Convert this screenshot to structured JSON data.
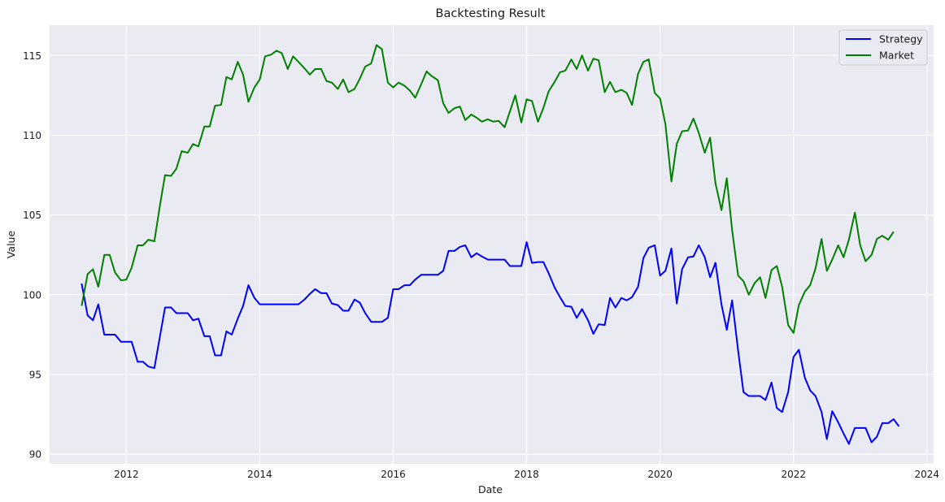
{
  "chart_data": {
    "type": "line",
    "title": "Backtesting Result",
    "xlabel": "Date",
    "ylabel": "Value",
    "xlim": [
      2010.85,
      2024.1
    ],
    "ylim": [
      89.4,
      116.9
    ],
    "xticks": [
      2012,
      2014,
      2016,
      2018,
      2020,
      2022,
      2024
    ],
    "xtick_labels": [
      "2012",
      "2014",
      "2016",
      "2018",
      "2020",
      "2022",
      "2024"
    ],
    "yticks": [
      90,
      95,
      100,
      105,
      110,
      115
    ],
    "ytick_labels": [
      "90",
      "95",
      "100",
      "105",
      "110",
      "115"
    ],
    "grid": true,
    "legend_position": "top-right",
    "colors": {
      "background": "#eaeaf2",
      "grid": "#ffffff",
      "strategy": "#0000ff",
      "market": "#008000"
    },
    "series": [
      {
        "name": "Strategy",
        "points": [
          [
            2011.33,
            100.7
          ],
          [
            2011.42,
            98.7
          ],
          [
            2011.5,
            98.4
          ],
          [
            2011.58,
            99.4
          ],
          [
            2011.67,
            97.5
          ],
          [
            2011.75,
            97.5
          ],
          [
            2011.83,
            97.5
          ],
          [
            2011.92,
            97.05
          ],
          [
            2012.0,
            97.05
          ],
          [
            2012.08,
            97.05
          ],
          [
            2012.17,
            95.8
          ],
          [
            2012.25,
            95.8
          ],
          [
            2012.33,
            95.5
          ],
          [
            2012.42,
            95.4
          ],
          [
            2012.5,
            97.3
          ],
          [
            2012.58,
            99.2
          ],
          [
            2012.67,
            99.2
          ],
          [
            2012.75,
            98.85
          ],
          [
            2012.83,
            98.85
          ],
          [
            2012.92,
            98.85
          ],
          [
            2013.0,
            98.4
          ],
          [
            2013.08,
            98.5
          ],
          [
            2013.17,
            97.4
          ],
          [
            2013.25,
            97.4
          ],
          [
            2013.33,
            96.2
          ],
          [
            2013.42,
            96.2
          ],
          [
            2013.5,
            97.7
          ],
          [
            2013.58,
            97.5
          ],
          [
            2013.67,
            98.5
          ],
          [
            2013.75,
            99.3
          ],
          [
            2013.83,
            100.6
          ],
          [
            2013.92,
            99.8
          ],
          [
            2014.0,
            99.4
          ],
          [
            2014.08,
            99.4
          ],
          [
            2014.17,
            99.4
          ],
          [
            2014.25,
            99.4
          ],
          [
            2014.33,
            99.4
          ],
          [
            2014.42,
            99.4
          ],
          [
            2014.5,
            99.4
          ],
          [
            2014.58,
            99.4
          ],
          [
            2014.67,
            99.7
          ],
          [
            2014.75,
            100.05
          ],
          [
            2014.83,
            100.35
          ],
          [
            2014.92,
            100.1
          ],
          [
            2015.0,
            100.1
          ],
          [
            2015.08,
            99.45
          ],
          [
            2015.17,
            99.35
          ],
          [
            2015.25,
            99.0
          ],
          [
            2015.33,
            99.0
          ],
          [
            2015.42,
            99.7
          ],
          [
            2015.5,
            99.5
          ],
          [
            2015.58,
            98.85
          ],
          [
            2015.67,
            98.3
          ],
          [
            2015.75,
            98.3
          ],
          [
            2015.83,
            98.3
          ],
          [
            2015.92,
            98.55
          ],
          [
            2016.0,
            100.35
          ],
          [
            2016.08,
            100.35
          ],
          [
            2016.17,
            100.6
          ],
          [
            2016.25,
            100.6
          ],
          [
            2016.33,
            100.95
          ],
          [
            2016.42,
            101.25
          ],
          [
            2016.5,
            101.25
          ],
          [
            2016.58,
            101.25
          ],
          [
            2016.67,
            101.25
          ],
          [
            2016.75,
            101.5
          ],
          [
            2016.83,
            102.75
          ],
          [
            2016.92,
            102.75
          ],
          [
            2017.0,
            103.0
          ],
          [
            2017.08,
            103.1
          ],
          [
            2017.17,
            102.35
          ],
          [
            2017.25,
            102.6
          ],
          [
            2017.33,
            102.4
          ],
          [
            2017.42,
            102.2
          ],
          [
            2017.5,
            102.2
          ],
          [
            2017.58,
            102.2
          ],
          [
            2017.67,
            102.2
          ],
          [
            2017.75,
            101.8
          ],
          [
            2017.83,
            101.8
          ],
          [
            2017.92,
            101.8
          ],
          [
            2018.0,
            103.3
          ],
          [
            2018.08,
            102.0
          ],
          [
            2018.17,
            102.05
          ],
          [
            2018.25,
            102.05
          ],
          [
            2018.33,
            101.35
          ],
          [
            2018.42,
            100.45
          ],
          [
            2018.5,
            99.85
          ],
          [
            2018.58,
            99.3
          ],
          [
            2018.67,
            99.25
          ],
          [
            2018.75,
            98.55
          ],
          [
            2018.83,
            99.1
          ],
          [
            2018.92,
            98.4
          ],
          [
            2019.0,
            97.55
          ],
          [
            2019.08,
            98.15
          ],
          [
            2019.17,
            98.1
          ],
          [
            2019.25,
            99.8
          ],
          [
            2019.33,
            99.2
          ],
          [
            2019.42,
            99.8
          ],
          [
            2019.5,
            99.65
          ],
          [
            2019.58,
            99.85
          ],
          [
            2019.67,
            100.5
          ],
          [
            2019.75,
            102.3
          ],
          [
            2019.83,
            102.95
          ],
          [
            2019.92,
            103.1
          ],
          [
            2020.0,
            101.2
          ],
          [
            2020.08,
            101.5
          ],
          [
            2020.17,
            102.9
          ],
          [
            2020.25,
            99.45
          ],
          [
            2020.33,
            101.6
          ],
          [
            2020.42,
            102.35
          ],
          [
            2020.5,
            102.4
          ],
          [
            2020.58,
            103.1
          ],
          [
            2020.67,
            102.35
          ],
          [
            2020.75,
            101.1
          ],
          [
            2020.83,
            102.0
          ],
          [
            2020.92,
            99.4
          ],
          [
            2021.0,
            97.8
          ],
          [
            2021.08,
            99.65
          ],
          [
            2021.17,
            96.5
          ],
          [
            2021.25,
            93.9
          ],
          [
            2021.33,
            93.65
          ],
          [
            2021.42,
            93.65
          ],
          [
            2021.5,
            93.65
          ],
          [
            2021.58,
            93.4
          ],
          [
            2021.67,
            94.5
          ],
          [
            2021.75,
            92.9
          ],
          [
            2021.83,
            92.65
          ],
          [
            2021.92,
            93.9
          ],
          [
            2022.0,
            96.1
          ],
          [
            2022.08,
            96.55
          ],
          [
            2022.17,
            94.8
          ],
          [
            2022.25,
            94.0
          ],
          [
            2022.33,
            93.65
          ],
          [
            2022.42,
            92.65
          ],
          [
            2022.5,
            90.95
          ],
          [
            2022.58,
            92.7
          ],
          [
            2022.67,
            92.0
          ],
          [
            2022.75,
            91.3
          ],
          [
            2022.83,
            90.65
          ],
          [
            2022.92,
            91.65
          ],
          [
            2023.0,
            91.65
          ],
          [
            2023.08,
            91.65
          ],
          [
            2023.17,
            90.75
          ],
          [
            2023.25,
            91.1
          ],
          [
            2023.33,
            91.95
          ],
          [
            2023.42,
            91.95
          ],
          [
            2023.5,
            92.2
          ],
          [
            2023.58,
            91.75
          ]
        ]
      },
      {
        "name": "Market",
        "points": [
          [
            2011.33,
            99.3
          ],
          [
            2011.42,
            101.3
          ],
          [
            2011.5,
            101.6
          ],
          [
            2011.58,
            100.5
          ],
          [
            2011.67,
            102.5
          ],
          [
            2011.75,
            102.5
          ],
          [
            2011.83,
            101.4
          ],
          [
            2011.92,
            100.9
          ],
          [
            2012.0,
            100.95
          ],
          [
            2012.08,
            101.7
          ],
          [
            2012.17,
            103.1
          ],
          [
            2012.25,
            103.1
          ],
          [
            2012.33,
            103.45
          ],
          [
            2012.42,
            103.35
          ],
          [
            2012.5,
            105.5
          ],
          [
            2012.58,
            107.5
          ],
          [
            2012.67,
            107.45
          ],
          [
            2012.75,
            107.9
          ],
          [
            2012.83,
            109.0
          ],
          [
            2012.92,
            108.9
          ],
          [
            2013.0,
            109.45
          ],
          [
            2013.08,
            109.3
          ],
          [
            2013.17,
            110.55
          ],
          [
            2013.25,
            110.55
          ],
          [
            2013.33,
            111.85
          ],
          [
            2013.42,
            111.9
          ],
          [
            2013.5,
            113.65
          ],
          [
            2013.58,
            113.5
          ],
          [
            2013.67,
            114.6
          ],
          [
            2013.75,
            113.8
          ],
          [
            2013.83,
            112.1
          ],
          [
            2013.92,
            113.0
          ],
          [
            2014.0,
            113.5
          ],
          [
            2014.08,
            114.95
          ],
          [
            2014.17,
            115.05
          ],
          [
            2014.25,
            115.3
          ],
          [
            2014.33,
            115.15
          ],
          [
            2014.42,
            114.15
          ],
          [
            2014.5,
            114.95
          ],
          [
            2014.58,
            114.6
          ],
          [
            2014.67,
            114.2
          ],
          [
            2014.75,
            113.8
          ],
          [
            2014.83,
            114.15
          ],
          [
            2014.92,
            114.15
          ],
          [
            2015.0,
            113.4
          ],
          [
            2015.08,
            113.3
          ],
          [
            2015.17,
            112.9
          ],
          [
            2015.25,
            113.5
          ],
          [
            2015.33,
            112.7
          ],
          [
            2015.42,
            112.9
          ],
          [
            2015.5,
            113.55
          ],
          [
            2015.58,
            114.3
          ],
          [
            2015.67,
            114.5
          ],
          [
            2015.75,
            115.65
          ],
          [
            2015.83,
            115.4
          ],
          [
            2015.92,
            113.3
          ],
          [
            2016.0,
            113.0
          ],
          [
            2016.08,
            113.3
          ],
          [
            2016.17,
            113.1
          ],
          [
            2016.25,
            112.8
          ],
          [
            2016.33,
            112.35
          ],
          [
            2016.42,
            113.2
          ],
          [
            2016.5,
            114.0
          ],
          [
            2016.58,
            113.7
          ],
          [
            2016.67,
            113.45
          ],
          [
            2016.75,
            112.0
          ],
          [
            2016.83,
            111.4
          ],
          [
            2016.92,
            111.7
          ],
          [
            2017.0,
            111.8
          ],
          [
            2017.08,
            110.95
          ],
          [
            2017.17,
            111.3
          ],
          [
            2017.25,
            111.1
          ],
          [
            2017.33,
            110.85
          ],
          [
            2017.42,
            111.0
          ],
          [
            2017.5,
            110.85
          ],
          [
            2017.58,
            110.9
          ],
          [
            2017.67,
            110.5
          ],
          [
            2017.75,
            111.5
          ],
          [
            2017.83,
            112.5
          ],
          [
            2017.92,
            110.8
          ],
          [
            2018.0,
            112.25
          ],
          [
            2018.08,
            112.15
          ],
          [
            2018.17,
            110.85
          ],
          [
            2018.25,
            111.7
          ],
          [
            2018.33,
            112.75
          ],
          [
            2018.42,
            113.35
          ],
          [
            2018.5,
            113.95
          ],
          [
            2018.58,
            114.05
          ],
          [
            2018.67,
            114.75
          ],
          [
            2018.75,
            114.15
          ],
          [
            2018.83,
            115.0
          ],
          [
            2018.92,
            114.05
          ],
          [
            2019.0,
            114.8
          ],
          [
            2019.08,
            114.7
          ],
          [
            2019.17,
            112.7
          ],
          [
            2019.25,
            113.35
          ],
          [
            2019.33,
            112.7
          ],
          [
            2019.42,
            112.85
          ],
          [
            2019.5,
            112.65
          ],
          [
            2019.58,
            111.9
          ],
          [
            2019.67,
            113.85
          ],
          [
            2019.75,
            114.6
          ],
          [
            2019.83,
            114.75
          ],
          [
            2019.92,
            112.65
          ],
          [
            2020.0,
            112.3
          ],
          [
            2020.08,
            110.7
          ],
          [
            2020.17,
            107.1
          ],
          [
            2020.25,
            109.45
          ],
          [
            2020.33,
            110.25
          ],
          [
            2020.42,
            110.3
          ],
          [
            2020.5,
            111.05
          ],
          [
            2020.58,
            110.15
          ],
          [
            2020.67,
            108.9
          ],
          [
            2020.75,
            109.85
          ],
          [
            2020.83,
            107.0
          ],
          [
            2020.92,
            105.3
          ],
          [
            2021.0,
            107.3
          ],
          [
            2021.08,
            104.05
          ],
          [
            2021.17,
            101.2
          ],
          [
            2021.25,
            100.85
          ],
          [
            2021.33,
            100.0
          ],
          [
            2021.42,
            100.75
          ],
          [
            2021.5,
            101.1
          ],
          [
            2021.58,
            99.8
          ],
          [
            2021.67,
            101.55
          ],
          [
            2021.75,
            101.8
          ],
          [
            2021.83,
            100.5
          ],
          [
            2021.92,
            98.1
          ],
          [
            2022.0,
            97.6
          ],
          [
            2022.08,
            99.35
          ],
          [
            2022.17,
            100.2
          ],
          [
            2022.25,
            100.6
          ],
          [
            2022.33,
            101.65
          ],
          [
            2022.42,
            103.5
          ],
          [
            2022.5,
            101.5
          ],
          [
            2022.58,
            102.2
          ],
          [
            2022.67,
            103.1
          ],
          [
            2022.75,
            102.35
          ],
          [
            2022.83,
            103.45
          ],
          [
            2022.92,
            105.15
          ],
          [
            2023.0,
            103.1
          ],
          [
            2023.08,
            102.1
          ],
          [
            2023.17,
            102.5
          ],
          [
            2023.25,
            103.5
          ],
          [
            2023.33,
            103.7
          ],
          [
            2023.42,
            103.45
          ],
          [
            2023.5,
            103.95
          ]
        ]
      }
    ]
  }
}
